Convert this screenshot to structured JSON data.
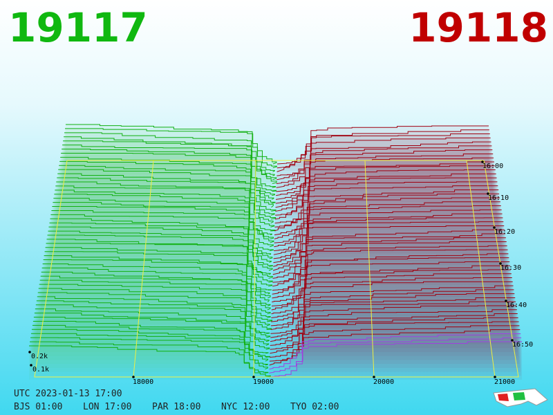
{
  "header": {
    "bid": "19117",
    "ask": "19118"
  },
  "price_axis": {
    "labels": [
      "18000",
      "19000",
      "20000",
      "21000"
    ]
  },
  "depth_axis": {
    "labels": [
      "0.2k",
      "0.1k"
    ]
  },
  "time_axis": {
    "labels": [
      "16:00",
      "16:10",
      "16:20",
      "16:30",
      "16:40",
      "16:50"
    ]
  },
  "footer": {
    "utc": "UTC 2023-01-13 17:00",
    "zones": [
      "BJS 01:00",
      "LON 17:00",
      "PAR 18:00",
      "NYC 12:00",
      "TYO 02:00"
    ]
  }
}
